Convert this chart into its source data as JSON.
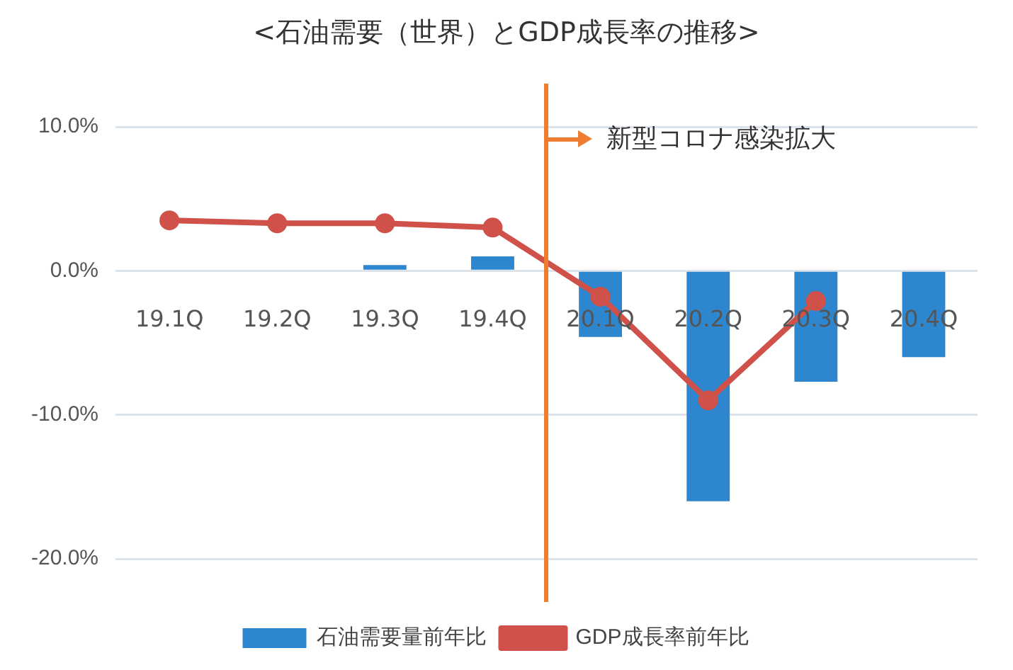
{
  "chart_data": {
    "type": "bar",
    "title": "<石油需要（世界）とGDP成長率の推移>",
    "categories": [
      "19.1Q",
      "19.2Q",
      "19.3Q",
      "19.4Q",
      "20.1Q",
      "20.2Q",
      "20.3Q",
      "20.4Q"
    ],
    "series": [
      {
        "name": "石油需要量前年比",
        "color": "#2e86cf",
        "values": [
          0,
          0,
          0.4,
          1.0,
          -4.6,
          -16.0,
          -7.7,
          -6.0
        ]
      },
      {
        "name": "GDP成長率前年比",
        "type": "line",
        "color": "#d0504a",
        "values": [
          3.5,
          3.3,
          3.3,
          3.0,
          -1.8,
          -9.0,
          -2.1,
          null
        ]
      }
    ],
    "ylim": [
      -23,
      13
    ],
    "yticks": [
      {
        "value": 10,
        "label": "10.0%"
      },
      {
        "value": 0,
        "label": "0.0%"
      },
      {
        "value": -10,
        "label": "-10.0%"
      },
      {
        "value": -20,
        "label": "-20.0%"
      }
    ],
    "grid": "y",
    "legend": "bottom",
    "marker": "circle",
    "annotations": [
      "新型コロナ感染拡大"
    ]
  }
}
